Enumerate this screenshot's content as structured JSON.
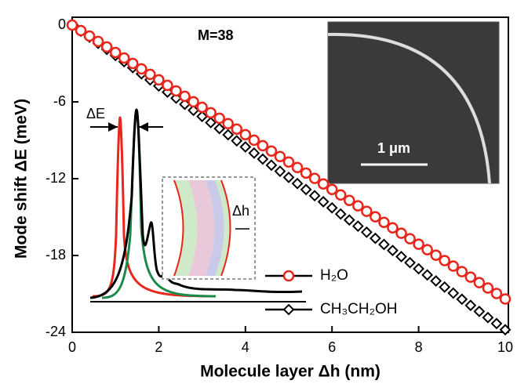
{
  "chart_data": {
    "type": "scatter",
    "xlabel": "Molecule layer Δh (nm)",
    "ylabel": "Mode shift ΔE (meV)",
    "x": [
      0,
      0.2,
      0.4,
      0.6,
      0.8,
      1,
      1.2,
      1.4,
      1.6,
      1.8,
      2,
      2.2,
      2.4,
      2.6,
      2.8,
      3,
      3.2,
      3.4,
      3.6,
      3.8,
      4,
      4.2,
      4.4,
      4.6,
      4.8,
      5,
      5.2,
      5.4,
      5.6,
      5.8,
      6,
      6.2,
      6.4,
      6.6,
      6.8,
      7,
      7.2,
      7.4,
      7.6,
      7.8,
      8,
      8.2,
      8.4,
      8.6,
      8.8,
      9,
      9.2,
      9.4,
      9.6,
      9.8,
      10
    ],
    "series": [
      {
        "name": "H₂O",
        "color": "#e8261b",
        "marker": "circle",
        "values": [
          0,
          -0.43,
          -0.86,
          -1.28,
          -1.71,
          -2.14,
          -2.57,
          -3.0,
          -3.42,
          -3.85,
          -4.28,
          -4.71,
          -5.14,
          -5.56,
          -5.99,
          -6.42,
          -6.85,
          -7.28,
          -7.7,
          -8.13,
          -8.56,
          -8.99,
          -9.42,
          -9.84,
          -10.27,
          -10.7,
          -11.13,
          -11.56,
          -11.98,
          -12.41,
          -12.84,
          -13.27,
          -13.7,
          -14.12,
          -14.55,
          -14.98,
          -15.41,
          -15.84,
          -16.26,
          -16.69,
          -17.12,
          -17.55,
          -17.98,
          -18.4,
          -18.83,
          -19.26,
          -19.69,
          -20.12,
          -20.54,
          -20.97,
          -21.4
        ]
      },
      {
        "name": "CH₃CH₂OH",
        "color": "#000000",
        "marker": "diamond",
        "values": [
          0,
          -0.48,
          -0.95,
          -1.43,
          -1.9,
          -2.38,
          -2.86,
          -3.33,
          -3.81,
          -4.28,
          -4.76,
          -5.24,
          -5.71,
          -6.19,
          -6.66,
          -7.14,
          -7.62,
          -8.09,
          -8.57,
          -9.04,
          -9.52,
          -10.0,
          -10.47,
          -10.95,
          -11.42,
          -11.9,
          -12.38,
          -12.85,
          -13.33,
          -13.8,
          -14.28,
          -14.76,
          -15.23,
          -15.71,
          -16.18,
          -16.66,
          -17.14,
          -17.61,
          -18.09,
          -18.56,
          -19.04,
          -19.52,
          -19.99,
          -20.47,
          -20.94,
          -21.42,
          -21.9,
          -22.37,
          -22.85,
          -23.32,
          -23.8
        ]
      }
    ],
    "xlim": [
      0,
      10
    ],
    "xticks": [
      0,
      2,
      4,
      6,
      8,
      10
    ],
    "ylim": [
      -24,
      0
    ],
    "yticks": [
      0,
      -6,
      -12,
      -18,
      -24
    ],
    "annotations": [
      "M=38",
      "ΔE",
      "Δh",
      "1 μm"
    ]
  }
}
